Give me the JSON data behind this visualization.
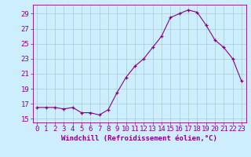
{
  "x": [
    0,
    1,
    2,
    3,
    4,
    5,
    6,
    7,
    8,
    9,
    10,
    11,
    12,
    13,
    14,
    15,
    16,
    17,
    18,
    19,
    20,
    21,
    22,
    23
  ],
  "y": [
    16.5,
    16.5,
    16.5,
    16.3,
    16.5,
    15.8,
    15.8,
    15.5,
    16.2,
    18.5,
    20.5,
    22.0,
    23.0,
    24.5,
    26.0,
    28.5,
    29.0,
    29.5,
    29.2,
    27.5,
    25.5,
    24.5,
    23.0,
    20.0
  ],
  "line_color": "#880088",
  "marker_color": "#880088",
  "bg_color": "#cceeff",
  "grid_color": "#aacccc",
  "tick_color": "#880088",
  "xlabel": "Windchill (Refroidissement éolien,°C)",
  "title": "",
  "xlim": [
    -0.5,
    23.5
  ],
  "ylim": [
    14.5,
    30.2
  ],
  "yticks": [
    15,
    17,
    19,
    21,
    23,
    25,
    27,
    29
  ],
  "xticks": [
    0,
    1,
    2,
    3,
    4,
    5,
    6,
    7,
    8,
    9,
    10,
    11,
    12,
    13,
    14,
    15,
    16,
    17,
    18,
    19,
    20,
    21,
    22,
    23
  ],
  "xlabel_fontsize": 6.5,
  "tick_fontsize": 6.5
}
